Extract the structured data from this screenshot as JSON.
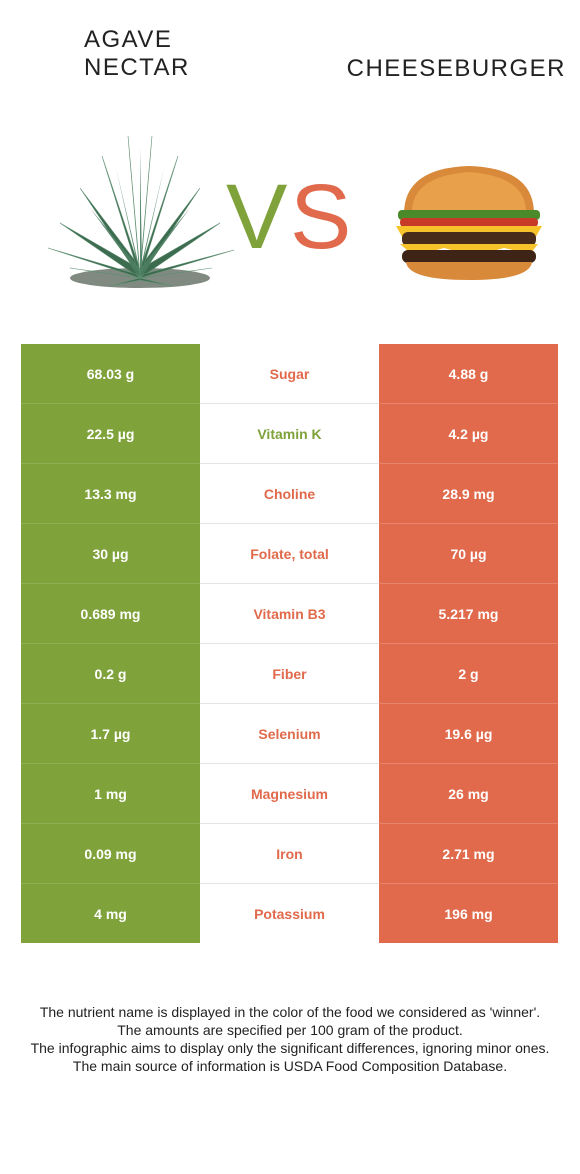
{
  "header": {
    "left_title_line1": "AGAVE",
    "left_title_line2": "NECTAR",
    "right_title": "CHEESEBURGER",
    "vs_v": "V",
    "vs_s": "S"
  },
  "colors": {
    "left_food": "#7fa23a",
    "right_food": "#e06a4b"
  },
  "rows": [
    {
      "left": "68.03 g",
      "nutrient": "Sugar",
      "right": "4.88 g",
      "winner": "right"
    },
    {
      "left": "22.5 µg",
      "nutrient": "Vitamin K",
      "right": "4.2 µg",
      "winner": "left"
    },
    {
      "left": "13.3 mg",
      "nutrient": "Choline",
      "right": "28.9 mg",
      "winner": "right"
    },
    {
      "left": "30 µg",
      "nutrient": "Folate, total",
      "right": "70 µg",
      "winner": "right"
    },
    {
      "left": "0.689 mg",
      "nutrient": "Vitamin B3",
      "right": "5.217 mg",
      "winner": "right"
    },
    {
      "left": "0.2 g",
      "nutrient": "Fiber",
      "right": "2 g",
      "winner": "right"
    },
    {
      "left": "1.7 µg",
      "nutrient": "Selenium",
      "right": "19.6 µg",
      "winner": "right"
    },
    {
      "left": "1 mg",
      "nutrient": "Magnesium",
      "right": "26 mg",
      "winner": "right"
    },
    {
      "left": "0.09 mg",
      "nutrient": "Iron",
      "right": "2.71 mg",
      "winner": "right"
    },
    {
      "left": "4 mg",
      "nutrient": "Potassium",
      "right": "196 mg",
      "winner": "right"
    }
  ],
  "footer": {
    "line1": "The nutrient name is displayed in the color of the food we considered as 'winner'.",
    "line2": "The amounts are specified per 100 gram of the product.",
    "line3": "The infographic aims to display only the significant differences, ignoring minor ones.",
    "line4": "The main source of information is USDA Food Composition Database."
  }
}
